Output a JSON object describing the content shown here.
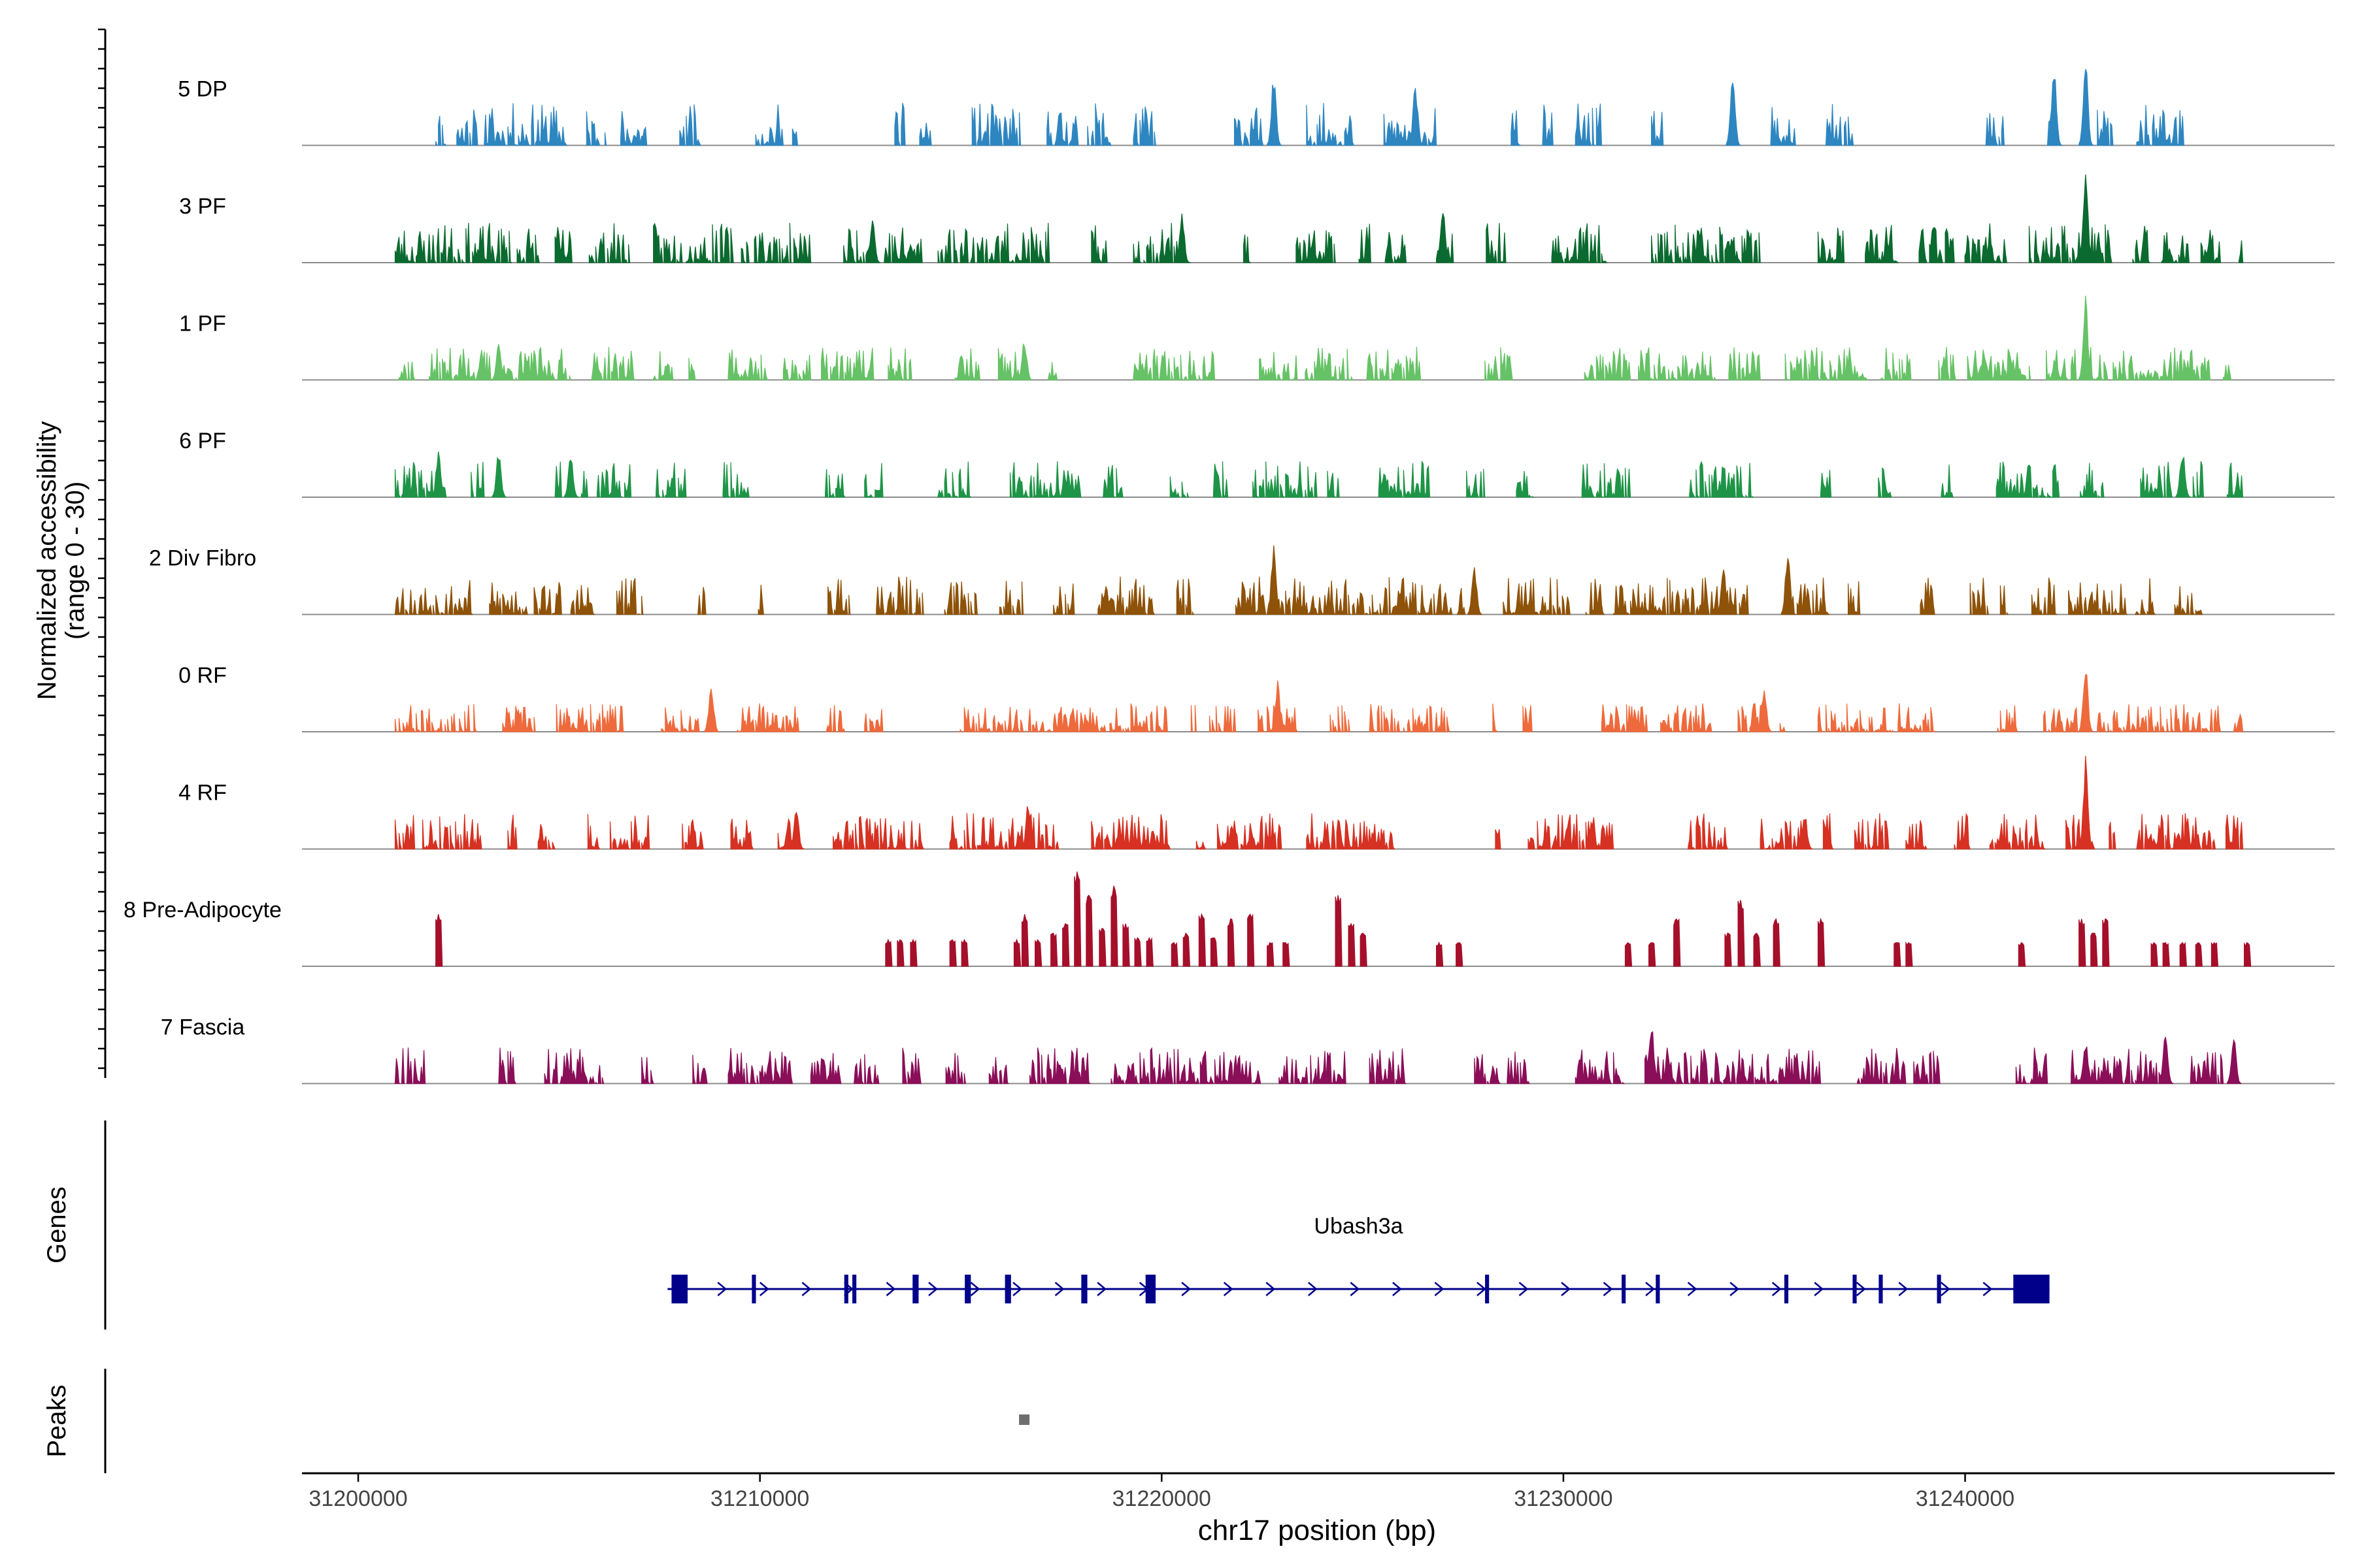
{
  "chart_data": {
    "type": "area",
    "title": "",
    "xlabel": "chr17 position (bp)",
    "ylabel_line1": "Normalized accessibility",
    "ylabel_line2": "(range 0 - 30)",
    "x_range": [
      31198600,
      31249200
    ],
    "x_ticks": [
      31200000,
      31210000,
      31220000,
      31230000,
      31240000
    ],
    "x_tick_labels": [
      "31200000",
      "31210000",
      "31220000",
      "31230000",
      "31240000"
    ],
    "y_range": [
      0,
      30
    ],
    "tracks": [
      {
        "name": "5 DP",
        "color": "#2E86C1",
        "seed": 11,
        "density": 0.5,
        "scale": 0.45,
        "peaks": [
          {
            "pos": 31243000,
            "h": 0.95
          },
          {
            "pos": 31234200,
            "h": 0.82
          },
          {
            "pos": 31222800,
            "h": 0.78
          },
          {
            "pos": 31226300,
            "h": 0.7
          },
          {
            "pos": 31242200,
            "h": 0.85
          }
        ]
      },
      {
        "name": "3 PF",
        "color": "#0B6A2F",
        "seed": 23,
        "density": 0.6,
        "scale": 0.42,
        "peaks": [
          {
            "pos": 31243000,
            "h": 1.0
          },
          {
            "pos": 31227000,
            "h": 0.62
          },
          {
            "pos": 31220500,
            "h": 0.55
          },
          {
            "pos": 31212800,
            "h": 0.52
          }
        ]
      },
      {
        "name": "1 PF",
        "color": "#66C266",
        "seed": 37,
        "density": 0.62,
        "scale": 0.35,
        "peaks": [
          {
            "pos": 31243000,
            "h": 0.9
          },
          {
            "pos": 31216600,
            "h": 0.45
          },
          {
            "pos": 31203500,
            "h": 0.4
          }
        ]
      },
      {
        "name": "6 PF",
        "color": "#1E9447",
        "seed": 41,
        "density": 0.52,
        "scale": 0.38,
        "peaks": [
          {
            "pos": 31245400,
            "h": 0.55
          },
          {
            "pos": 31202000,
            "h": 0.5
          },
          {
            "pos": 31203500,
            "h": 0.5
          },
          {
            "pos": 31205300,
            "h": 0.5
          }
        ]
      },
      {
        "name": "2 Div Fibro",
        "color": "#8E5208",
        "seed": 53,
        "density": 0.62,
        "scale": 0.4,
        "peaks": [
          {
            "pos": 31222800,
            "h": 0.8
          },
          {
            "pos": 31235600,
            "h": 0.72
          },
          {
            "pos": 31227800,
            "h": 0.55
          },
          {
            "pos": 31234000,
            "h": 0.52
          }
        ]
      },
      {
        "name": "0 RF",
        "color": "#EE6A3C",
        "seed": 67,
        "density": 0.66,
        "scale": 0.3,
        "peaks": [
          {
            "pos": 31243000,
            "h": 0.75
          },
          {
            "pos": 31222900,
            "h": 0.55
          },
          {
            "pos": 31208800,
            "h": 0.55
          },
          {
            "pos": 31235000,
            "h": 0.45
          }
        ]
      },
      {
        "name": "4 RF",
        "color": "#D63122",
        "seed": 79,
        "density": 0.58,
        "scale": 0.38,
        "peaks": [
          {
            "pos": 31243000,
            "h": 1.0
          },
          {
            "pos": 31216700,
            "h": 0.55
          },
          {
            "pos": 31210900,
            "h": 0.45
          },
          {
            "pos": 31236000,
            "h": 0.38
          }
        ]
      },
      {
        "name": "8 Pre-Adipocyte",
        "color": "#A50F2A",
        "seed": 97,
        "density": 0.0,
        "scale": 0.0,
        "peaks": [
          {
            "pos": 31202000,
            "h": 0.55
          },
          {
            "pos": 31213200,
            "h": 0.28
          },
          {
            "pos": 31213500,
            "h": 0.28
          },
          {
            "pos": 31213800,
            "h": 0.28
          },
          {
            "pos": 31214800,
            "h": 0.28
          },
          {
            "pos": 31215100,
            "h": 0.28
          },
          {
            "pos": 31216400,
            "h": 0.28
          },
          {
            "pos": 31216600,
            "h": 0.55
          },
          {
            "pos": 31216900,
            "h": 0.28
          },
          {
            "pos": 31217300,
            "h": 0.35
          },
          {
            "pos": 31217600,
            "h": 0.45
          },
          {
            "pos": 31217900,
            "h": 1.0
          },
          {
            "pos": 31218200,
            "h": 0.75
          },
          {
            "pos": 31218500,
            "h": 0.4
          },
          {
            "pos": 31218800,
            "h": 0.85
          },
          {
            "pos": 31219100,
            "h": 0.45
          },
          {
            "pos": 31219400,
            "h": 0.3
          },
          {
            "pos": 31219700,
            "h": 0.3
          },
          {
            "pos": 31220300,
            "h": 0.25
          },
          {
            "pos": 31220600,
            "h": 0.35
          },
          {
            "pos": 31221000,
            "h": 0.55
          },
          {
            "pos": 31221300,
            "h": 0.3
          },
          {
            "pos": 31221700,
            "h": 0.5
          },
          {
            "pos": 31222200,
            "h": 0.55
          },
          {
            "pos": 31222700,
            "h": 0.25
          },
          {
            "pos": 31223100,
            "h": 0.25
          },
          {
            "pos": 31224400,
            "h": 0.75
          },
          {
            "pos": 31224700,
            "h": 0.45
          },
          {
            "pos": 31225000,
            "h": 0.35
          },
          {
            "pos": 31226900,
            "h": 0.25
          },
          {
            "pos": 31227400,
            "h": 0.25
          },
          {
            "pos": 31231600,
            "h": 0.25
          },
          {
            "pos": 31232200,
            "h": 0.25
          },
          {
            "pos": 31232800,
            "h": 0.5
          },
          {
            "pos": 31234100,
            "h": 0.35
          },
          {
            "pos": 31234400,
            "h": 0.7
          },
          {
            "pos": 31234800,
            "h": 0.35
          },
          {
            "pos": 31235300,
            "h": 0.5
          },
          {
            "pos": 31236400,
            "h": 0.5
          },
          {
            "pos": 31238300,
            "h": 0.25
          },
          {
            "pos": 31238600,
            "h": 0.25
          },
          {
            "pos": 31241400,
            "h": 0.25
          },
          {
            "pos": 31242900,
            "h": 0.5
          },
          {
            "pos": 31243200,
            "h": 0.35
          },
          {
            "pos": 31243500,
            "h": 0.5
          },
          {
            "pos": 31244700,
            "h": 0.25
          },
          {
            "pos": 31245000,
            "h": 0.25
          },
          {
            "pos": 31245400,
            "h": 0.25
          },
          {
            "pos": 31245800,
            "h": 0.25
          },
          {
            "pos": 31246200,
            "h": 0.25
          },
          {
            "pos": 31247000,
            "h": 0.25
          }
        ]
      },
      {
        "name": "7 Fascia",
        "color": "#8A0E58",
        "seed": 113,
        "density": 0.55,
        "scale": 0.38,
        "peaks": [
          {
            "pos": 31232200,
            "h": 0.72
          },
          {
            "pos": 31245000,
            "h": 0.55
          },
          {
            "pos": 31246700,
            "h": 0.52
          },
          {
            "pos": 31243000,
            "h": 0.48
          }
        ]
      }
    ],
    "genes_panel_label": "Genes",
    "peaks_panel_label": "Peaks",
    "gene": {
      "name": "Ubash3a",
      "color": "#00008B",
      "start": 31207700,
      "end": 31242100,
      "strand": "+",
      "exons": [
        {
          "start": 31207800,
          "end": 31208200
        },
        {
          "start": 31209800,
          "end": 31209900
        },
        {
          "start": 31212100,
          "end": 31212200
        },
        {
          "start": 31212300,
          "end": 31212400
        },
        {
          "start": 31213800,
          "end": 31213950
        },
        {
          "start": 31215100,
          "end": 31215250
        },
        {
          "start": 31216100,
          "end": 31216250
        },
        {
          "start": 31218000,
          "end": 31218150
        },
        {
          "start": 31219600,
          "end": 31219850
        },
        {
          "start": 31228050,
          "end": 31228150
        },
        {
          "start": 31231450,
          "end": 31231550
        },
        {
          "start": 31232300,
          "end": 31232400
        },
        {
          "start": 31235500,
          "end": 31235600
        },
        {
          "start": 31237200,
          "end": 31237300
        },
        {
          "start": 31237850,
          "end": 31237950
        },
        {
          "start": 31239300,
          "end": 31239400
        },
        {
          "start": 31241200,
          "end": 31242100
        }
      ]
    },
    "peak_regions": [
      {
        "start": 31216450,
        "end": 31216700
      }
    ]
  }
}
